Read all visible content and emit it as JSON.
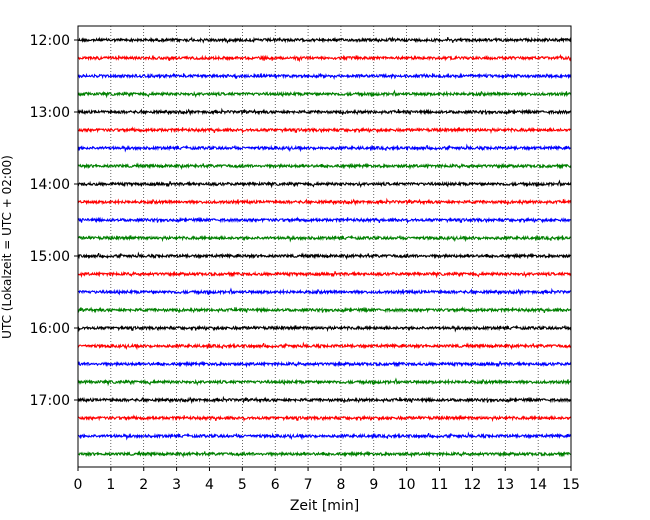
{
  "chart_data": {
    "type": "line",
    "title": "",
    "xlabel": "Zeit  [min]",
    "ylabel": "UTC (Lokalzeit = UTC + 02:00)",
    "xlim": [
      0,
      15
    ],
    "xticks": [
      "0",
      "1",
      "2",
      "3",
      "4",
      "5",
      "6",
      "7",
      "8",
      "9",
      "10",
      "11",
      "12",
      "13",
      "14",
      "15"
    ],
    "yticks": [
      "12:00",
      "13:00",
      "14:00",
      "15:00",
      "16:00",
      "17:00"
    ],
    "grid": "vertical dotted at every minute",
    "trace_interval_min": 15,
    "trace_colors": [
      "#000000",
      "#ff0000",
      "#0000ff",
      "#008000"
    ],
    "traces_start": [
      "12:00",
      "12:15",
      "12:30",
      "12:45",
      "13:00",
      "13:15",
      "13:30",
      "13:45",
      "14:00",
      "14:15",
      "14:30",
      "14:45",
      "15:00",
      "15:15",
      "15:30",
      "15:45",
      "16:00",
      "16:15",
      "16:30",
      "16:45",
      "17:00",
      "17:15",
      "17:30",
      "17:45"
    ]
  }
}
